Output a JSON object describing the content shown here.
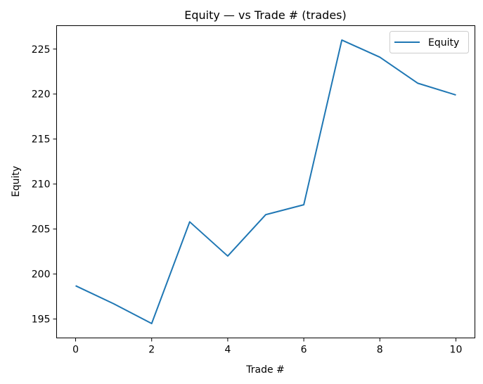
{
  "chart_data": {
    "type": "line",
    "title": "Equity — vs Trade # (trades)",
    "xlabel": "Trade #",
    "ylabel": "Equity",
    "xlim": [
      -0.5,
      10.5
    ],
    "ylim": [
      192.9,
      227.6
    ],
    "xticks": [
      0,
      2,
      4,
      6,
      8,
      10
    ],
    "yticks": [
      195,
      200,
      205,
      210,
      215,
      220,
      225
    ],
    "grid": false,
    "legend_position": "top-right",
    "series": [
      {
        "name": "Equity",
        "color": "#1f77b4",
        "x": [
          0,
          1,
          2,
          3,
          4,
          5,
          6,
          7,
          8,
          9,
          10
        ],
        "y": [
          198.7,
          196.7,
          194.5,
          205.8,
          202.0,
          206.6,
          207.7,
          226.0,
          224.1,
          221.2,
          219.9
        ]
      }
    ]
  }
}
